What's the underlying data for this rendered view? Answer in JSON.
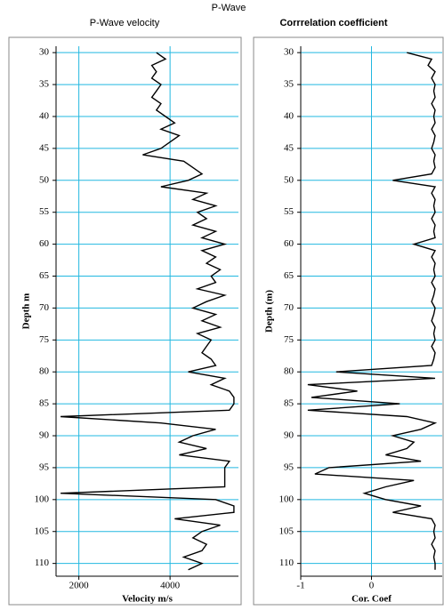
{
  "title": "P-Wave",
  "chart_data": [
    {
      "type": "line",
      "title": "P-Wave velocity",
      "x_label": "Velocity m/s",
      "y_label": "Depth m",
      "xlim": [
        1500,
        5500
      ],
      "xticks": [
        2000,
        4000
      ],
      "ylim": [
        29,
        112
      ],
      "yticks": [
        30,
        35,
        40,
        45,
        50,
        55,
        60,
        65,
        70,
        75,
        80,
        85,
        90,
        95,
        100,
        105,
        110
      ],
      "y_inverted": true,
      "grid": true,
      "grid_color": "#22b8e0",
      "color": "#000000",
      "depth": [
        30,
        31,
        32,
        33,
        34,
        35,
        36,
        37,
        38,
        39,
        40,
        41,
        42,
        43,
        44,
        45,
        46,
        47,
        48,
        49,
        50,
        51,
        52,
        53,
        54,
        55,
        56,
        57,
        58,
        59,
        60,
        61,
        62,
        63,
        64,
        65,
        66,
        67,
        68,
        69,
        70,
        71,
        72,
        73,
        74,
        75,
        76,
        77,
        78,
        79,
        80,
        81,
        82,
        83,
        84,
        85,
        86,
        87,
        88,
        89,
        90,
        91,
        92,
        93,
        94,
        95,
        96,
        97,
        98,
        99,
        100,
        101,
        102,
        103,
        104,
        105,
        106,
        107,
        108,
        109,
        110,
        111
      ],
      "values": [
        3700,
        3900,
        3600,
        3700,
        3600,
        3800,
        3700,
        3600,
        3800,
        3700,
        3900,
        4100,
        3800,
        4200,
        4000,
        3800,
        3400,
        4300,
        4500,
        4700,
        4400,
        3800,
        4800,
        4500,
        5000,
        4600,
        4800,
        4500,
        5000,
        4700,
        5200,
        4700,
        5000,
        4800,
        5100,
        4900,
        5000,
        4600,
        5200,
        4800,
        4500,
        5000,
        4700,
        5100,
        4600,
        4900,
        4800,
        4700,
        4900,
        5000,
        4400,
        5200,
        4900,
        5300,
        5400,
        5400,
        5300,
        1600,
        3800,
        5000,
        4500,
        4200,
        4800,
        4200,
        5300,
        5200,
        5200,
        5200,
        5200,
        1600,
        5000,
        5400,
        5400,
        4100,
        5100,
        4700,
        4500,
        4800,
        4700,
        4300,
        4700,
        4400
      ]
    },
    {
      "type": "line",
      "title": "Corrrelation coefficient",
      "x_label": "Cor. Coef",
      "y_label": "Depth (m)",
      "xlim": [
        -1,
        1
      ],
      "xticks": [
        -1,
        0
      ],
      "ylim": [
        29,
        112
      ],
      "yticks": [
        30,
        35,
        40,
        45,
        50,
        55,
        60,
        65,
        70,
        75,
        80,
        85,
        90,
        95,
        100,
        105,
        110
      ],
      "y_inverted": true,
      "grid": true,
      "grid_color": "#22b8e0",
      "color": "#000000",
      "depth": [
        30,
        31,
        32,
        33,
        34,
        35,
        36,
        37,
        38,
        39,
        40,
        41,
        42,
        43,
        44,
        45,
        46,
        47,
        48,
        49,
        50,
        51,
        52,
        53,
        54,
        55,
        56,
        57,
        58,
        59,
        60,
        61,
        62,
        63,
        64,
        65,
        66,
        67,
        68,
        69,
        70,
        71,
        72,
        73,
        74,
        75,
        76,
        77,
        78,
        79,
        80,
        81,
        82,
        83,
        84,
        85,
        86,
        87,
        88,
        89,
        90,
        91,
        92,
        93,
        94,
        95,
        96,
        97,
        98,
        99,
        100,
        101,
        102,
        103,
        104,
        105,
        106,
        107,
        108,
        109,
        110,
        111
      ],
      "values": [
        0.5,
        0.85,
        0.8,
        0.9,
        0.85,
        0.9,
        0.88,
        0.9,
        0.85,
        0.9,
        0.88,
        0.9,
        0.85,
        0.9,
        0.88,
        0.85,
        0.9,
        0.88,
        0.9,
        0.85,
        0.3,
        0.9,
        0.85,
        0.9,
        0.88,
        0.9,
        0.85,
        0.9,
        0.88,
        0.9,
        0.6,
        0.9,
        0.85,
        0.9,
        0.88,
        0.9,
        0.85,
        0.9,
        0.88,
        0.85,
        0.9,
        0.88,
        0.85,
        0.9,
        0.88,
        0.9,
        0.85,
        0.9,
        0.88,
        0.85,
        -0.5,
        0.9,
        -0.9,
        -0.2,
        -0.85,
        0.4,
        -0.9,
        0.5,
        0.9,
        0.7,
        0.3,
        0.6,
        0.5,
        0.2,
        0.7,
        -0.6,
        -0.8,
        0.6,
        0.2,
        -0.1,
        0.2,
        0.7,
        0.3,
        0.85,
        0.9,
        0.88,
        0.9,
        0.85,
        0.9,
        0.88,
        0.9,
        0.9
      ]
    }
  ]
}
